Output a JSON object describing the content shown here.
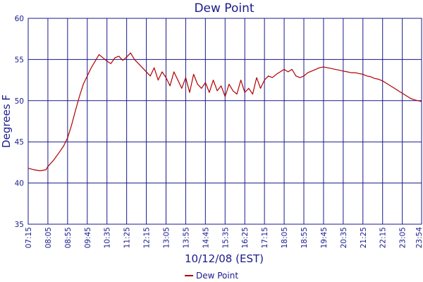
{
  "chart_data": {
    "type": "line",
    "title": "Dew Point",
    "xlabel": "10/12/08 (EST)",
    "ylabel": "Degrees F",
    "ylim": [
      35,
      60
    ],
    "yticks": [
      "35",
      "40",
      "45",
      "50",
      "55",
      "60"
    ],
    "xticks": [
      "07:15",
      "08:05",
      "08:55",
      "09:45",
      "10:35",
      "11:25",
      "12:15",
      "13:05",
      "13:55",
      "14:45",
      "15:35",
      "16:25",
      "17:15",
      "18:05",
      "18:55",
      "19:45",
      "20:35",
      "21:25",
      "22:15",
      "23:05",
      "23:54"
    ],
    "grid": true,
    "legend": "bottom-center",
    "colors": {
      "series": "#b00000",
      "grid": "#1a1a8c",
      "text": "#1a1a8c"
    },
    "series": [
      {
        "name": "Dew Point",
        "x": [
          "07:15",
          "07:30",
          "07:45",
          "08:00",
          "08:05",
          "08:20",
          "08:35",
          "08:45",
          "08:55",
          "09:05",
          "09:15",
          "09:25",
          "09:35",
          "09:45",
          "09:55",
          "10:05",
          "10:15",
          "10:25",
          "10:35",
          "10:45",
          "10:55",
          "11:05",
          "11:15",
          "11:25",
          "11:35",
          "11:45",
          "11:55",
          "12:05",
          "12:15",
          "12:25",
          "12:35",
          "12:45",
          "12:55",
          "13:05",
          "13:15",
          "13:25",
          "13:35",
          "13:45",
          "13:55",
          "14:05",
          "14:15",
          "14:25",
          "14:35",
          "14:45",
          "14:55",
          "15:05",
          "15:15",
          "15:25",
          "15:35",
          "15:45",
          "15:55",
          "16:05",
          "16:15",
          "16:25",
          "16:35",
          "16:45",
          "16:55",
          "17:05",
          "17:15",
          "17:25",
          "17:35",
          "17:45",
          "17:55",
          "18:05",
          "18:15",
          "18:25",
          "18:35",
          "18:45",
          "18:55",
          "19:05",
          "19:15",
          "19:25",
          "19:35",
          "19:45",
          "19:55",
          "20:05",
          "20:15",
          "20:25",
          "20:35",
          "20:45",
          "20:55",
          "21:05",
          "21:15",
          "21:25",
          "21:35",
          "21:45",
          "21:55",
          "22:05",
          "22:15",
          "22:25",
          "22:35",
          "22:45",
          "22:55",
          "23:05",
          "23:15",
          "23:25",
          "23:35",
          "23:45",
          "23:54"
        ],
        "values": [
          41.8,
          41.6,
          41.5,
          41.6,
          42.0,
          42.8,
          43.8,
          44.5,
          45.5,
          47.0,
          48.8,
          50.5,
          52.0,
          53.0,
          54.0,
          54.8,
          55.6,
          55.2,
          54.8,
          54.5,
          55.2,
          55.4,
          54.9,
          55.3,
          55.8,
          55.0,
          54.5,
          54.0,
          53.5,
          53.0,
          54.0,
          52.5,
          53.5,
          52.8,
          51.8,
          53.5,
          52.5,
          51.5,
          52.8,
          51.0,
          53.2,
          52.0,
          51.5,
          52.2,
          51.0,
          52.5,
          51.2,
          51.8,
          50.5,
          52.0,
          51.2,
          50.8,
          52.5,
          51.0,
          51.5,
          50.8,
          52.8,
          51.5,
          52.5,
          53.0,
          52.8,
          53.2,
          53.5,
          53.8,
          53.5,
          53.8,
          53.0,
          52.8,
          53.0,
          53.4,
          53.6,
          53.8,
          54.0,
          54.1,
          54.0,
          53.9,
          53.8,
          53.7,
          53.6,
          53.5,
          53.4,
          53.4,
          53.3,
          53.2,
          53.0,
          52.9,
          52.7,
          52.6,
          52.4,
          52.1,
          51.8,
          51.5,
          51.2,
          50.9,
          50.6,
          50.3,
          50.1,
          50.0,
          49.9
        ]
      }
    ]
  }
}
